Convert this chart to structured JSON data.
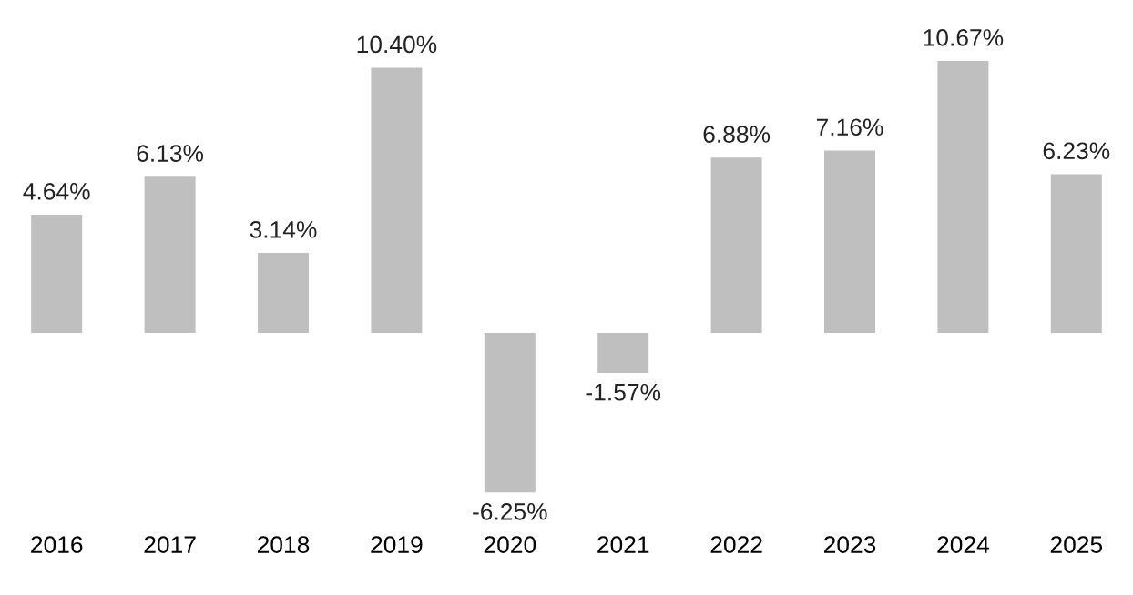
{
  "chart_data": {
    "type": "bar",
    "categories": [
      "2016",
      "2017",
      "2018",
      "2019",
      "2020",
      "2021",
      "2022",
      "2023",
      "2024",
      "2025"
    ],
    "values": [
      4.64,
      6.13,
      3.14,
      10.4,
      -6.25,
      -1.57,
      6.88,
      7.16,
      10.67,
      6.23
    ],
    "value_labels": [
      "4.64%",
      "6.13%",
      "3.14%",
      "10.40%",
      "-6.25%",
      "-1.57%",
      "6.88%",
      "7.16%",
      "10.67%",
      "6.23%"
    ],
    "color": "#bfbfbf",
    "grid": false,
    "legend": false,
    "tick_labels": "x"
  }
}
